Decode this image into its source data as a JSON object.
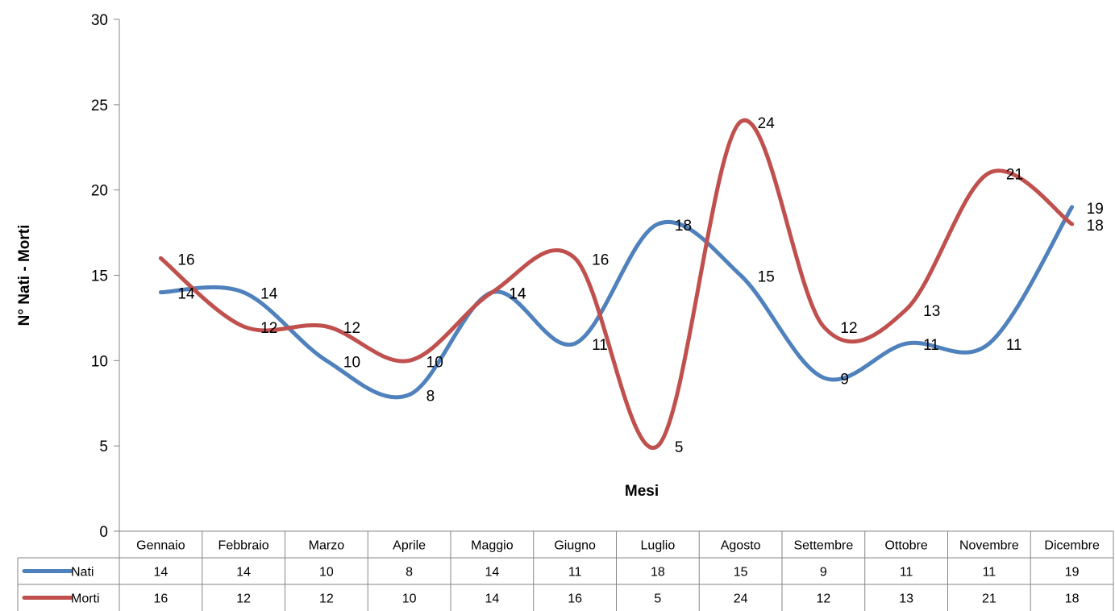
{
  "chart_data": {
    "type": "line",
    "title": "",
    "xlabel": "Mesi",
    "ylabel": "N° Nati - Morti",
    "ylim": [
      0,
      30
    ],
    "yticks": [
      0,
      5,
      10,
      15,
      20,
      25,
      30
    ],
    "grid": false,
    "legend": "data-table",
    "smooth": true,
    "categories": [
      "Gennaio",
      "Febbraio",
      "Marzo",
      "Aprile",
      "Maggio",
      "Giugno",
      "Luglio",
      "Agosto",
      "Settembre",
      "Ottobre",
      "Novembre",
      "Dicembre"
    ],
    "series": [
      {
        "name": "Nati",
        "color": "#4F81BD",
        "values": [
          14,
          14,
          10,
          8,
          14,
          11,
          18,
          15,
          9,
          11,
          11,
          19
        ]
      },
      {
        "name": "Morti",
        "color": "#C0504D",
        "values": [
          16,
          12,
          12,
          10,
          14,
          16,
          5,
          24,
          12,
          13,
          21,
          18
        ]
      }
    ]
  }
}
